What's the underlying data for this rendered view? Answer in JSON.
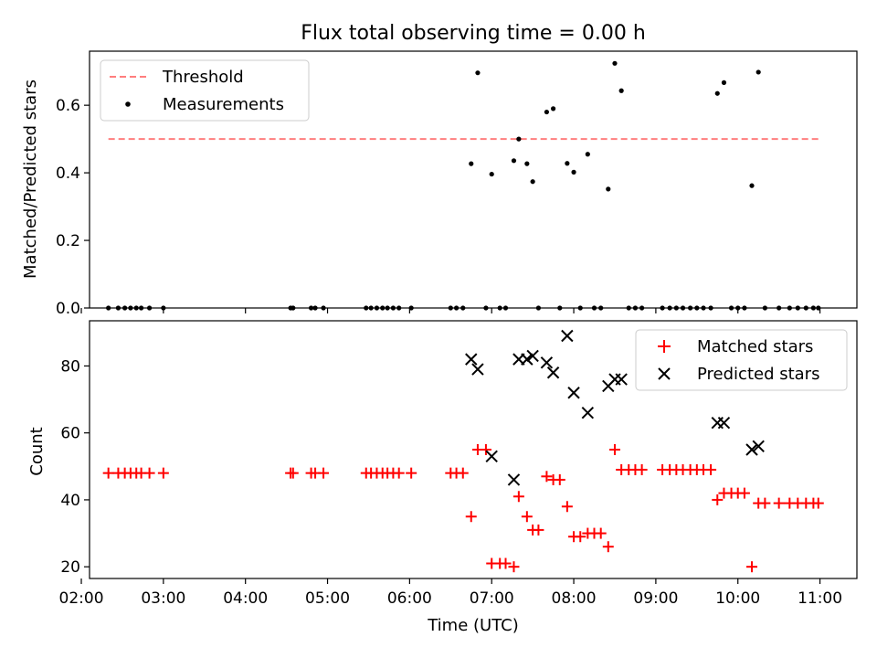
{
  "chart_data": [
    {
      "type": "scatter",
      "title": "Flux total observing time = 0.00 h",
      "xlabel": "",
      "ylabel": "Matched/Predicted stars",
      "ylim": [
        0,
        0.76
      ],
      "yticks": [
        0.0,
        0.2,
        0.4,
        0.6
      ],
      "ytick_labels": [
        "0.0",
        "0.2",
        "0.4",
        "0.6"
      ],
      "xlim_hours": [
        2.1,
        11.45
      ],
      "legend": "top-left",
      "colors": {
        "threshold": "#ff7f7f",
        "measurements": "#000000"
      },
      "threshold": {
        "name": "Threshold",
        "x_hours": [
          2.33,
          10.98
        ],
        "y": 0.5
      },
      "series": [
        {
          "name": "Measurements",
          "x_hours": [
            2.33,
            2.45,
            2.53,
            2.6,
            2.67,
            2.73,
            2.83,
            3.0,
            4.55,
            4.58,
            4.8,
            4.85,
            4.95,
            5.47,
            5.53,
            5.6,
            5.67,
            5.73,
            5.8,
            5.87,
            6.02,
            6.5,
            6.57,
            6.65,
            6.75,
            6.83,
            6.93,
            7.0,
            7.1,
            7.17,
            7.27,
            7.33,
            7.43,
            7.5,
            7.57,
            7.67,
            7.75,
            7.83,
            7.92,
            8.0,
            8.08,
            8.17,
            8.25,
            8.33,
            8.42,
            8.5,
            8.58,
            8.67,
            8.75,
            8.83,
            9.08,
            9.17,
            9.25,
            9.33,
            9.42,
            9.5,
            9.58,
            9.67,
            9.75,
            9.83,
            9.92,
            10.0,
            10.08,
            10.17,
            10.25,
            10.33,
            10.5,
            10.63,
            10.73,
            10.83,
            10.92,
            10.98
          ],
          "y": [
            0,
            0,
            0,
            0,
            0,
            0,
            0,
            0,
            0,
            0,
            0,
            0,
            0,
            0,
            0,
            0,
            0,
            0,
            0,
            0,
            0,
            0,
            0,
            0,
            0.427,
            0.696,
            0,
            0.396,
            0,
            0,
            0.436,
            0.5,
            0.427,
            0.374,
            0,
            0.58,
            0.59,
            0,
            0.428,
            0.402,
            0,
            0.455,
            0,
            0,
            0.352,
            0.724,
            0.643,
            0,
            0,
            0,
            0,
            0,
            0,
            0,
            0,
            0,
            0,
            0,
            0.635,
            0.667,
            0,
            0,
            0,
            0.362,
            0.698,
            0,
            0,
            0,
            0,
            0,
            0,
            0
          ]
        }
      ]
    },
    {
      "type": "scatter",
      "title": "",
      "xlabel": "Time (UTC)",
      "ylabel": "Count",
      "ylim": [
        16.5,
        93.5
      ],
      "yticks": [
        20,
        40,
        60,
        80
      ],
      "xticks_hours": [
        2,
        3,
        4,
        5,
        6,
        7,
        8,
        9,
        10,
        11
      ],
      "xtick_labels": [
        "02:00",
        "03:00",
        "04:00",
        "05:00",
        "06:00",
        "07:00",
        "08:00",
        "09:00",
        "10:00",
        "11:00"
      ],
      "xlim_hours": [
        2.1,
        11.45
      ],
      "legend": "top-right",
      "colors": {
        "matched": "#ff0000",
        "predicted": "#000000"
      },
      "series": [
        {
          "name": "Matched stars",
          "marker": "plus",
          "x_hours": [
            2.33,
            2.45,
            2.53,
            2.6,
            2.67,
            2.73,
            2.83,
            3.0,
            4.55,
            4.58,
            4.8,
            4.85,
            4.95,
            5.47,
            5.53,
            5.6,
            5.67,
            5.73,
            5.8,
            5.87,
            6.02,
            6.5,
            6.57,
            6.65,
            6.75,
            6.83,
            6.93,
            7.0,
            7.1,
            7.17,
            7.27,
            7.33,
            7.43,
            7.5,
            7.57,
            7.67,
            7.75,
            7.83,
            7.92,
            8.0,
            8.08,
            8.17,
            8.25,
            8.33,
            8.42,
            8.5,
            8.58,
            8.67,
            8.75,
            8.83,
            9.08,
            9.17,
            9.25,
            9.33,
            9.42,
            9.5,
            9.58,
            9.67,
            9.75,
            9.83,
            9.92,
            10.0,
            10.08,
            10.17,
            10.25,
            10.33,
            10.5,
            10.63,
            10.73,
            10.83,
            10.92,
            10.98
          ],
          "y": [
            48,
            48,
            48,
            48,
            48,
            48,
            48,
            48,
            48,
            48,
            48,
            48,
            48,
            48,
            48,
            48,
            48,
            48,
            48,
            48,
            48,
            48,
            48,
            48,
            35,
            55,
            55,
            21,
            21,
            21,
            20,
            41,
            35,
            31,
            31,
            47,
            46,
            46,
            38,
            29,
            29,
            30,
            30,
            30,
            26,
            55,
            49,
            49,
            49,
            49,
            49,
            49,
            49,
            49,
            49,
            49,
            49,
            49,
            40,
            42,
            42,
            42,
            42,
            20,
            39,
            39,
            39,
            39,
            39,
            39,
            39,
            39
          ]
        },
        {
          "name": "Predicted stars",
          "marker": "x",
          "x_hours": [
            6.75,
            6.83,
            7.0,
            7.27,
            7.33,
            7.43,
            7.5,
            7.67,
            7.75,
            7.92,
            8.0,
            8.17,
            8.42,
            8.5,
            8.58,
            9.75,
            9.83,
            10.17,
            10.25
          ],
          "y": [
            82,
            79,
            53,
            46,
            82,
            82,
            83,
            81,
            78,
            89,
            72,
            66,
            74,
            76,
            76,
            63,
            63,
            55,
            56
          ]
        }
      ]
    }
  ]
}
